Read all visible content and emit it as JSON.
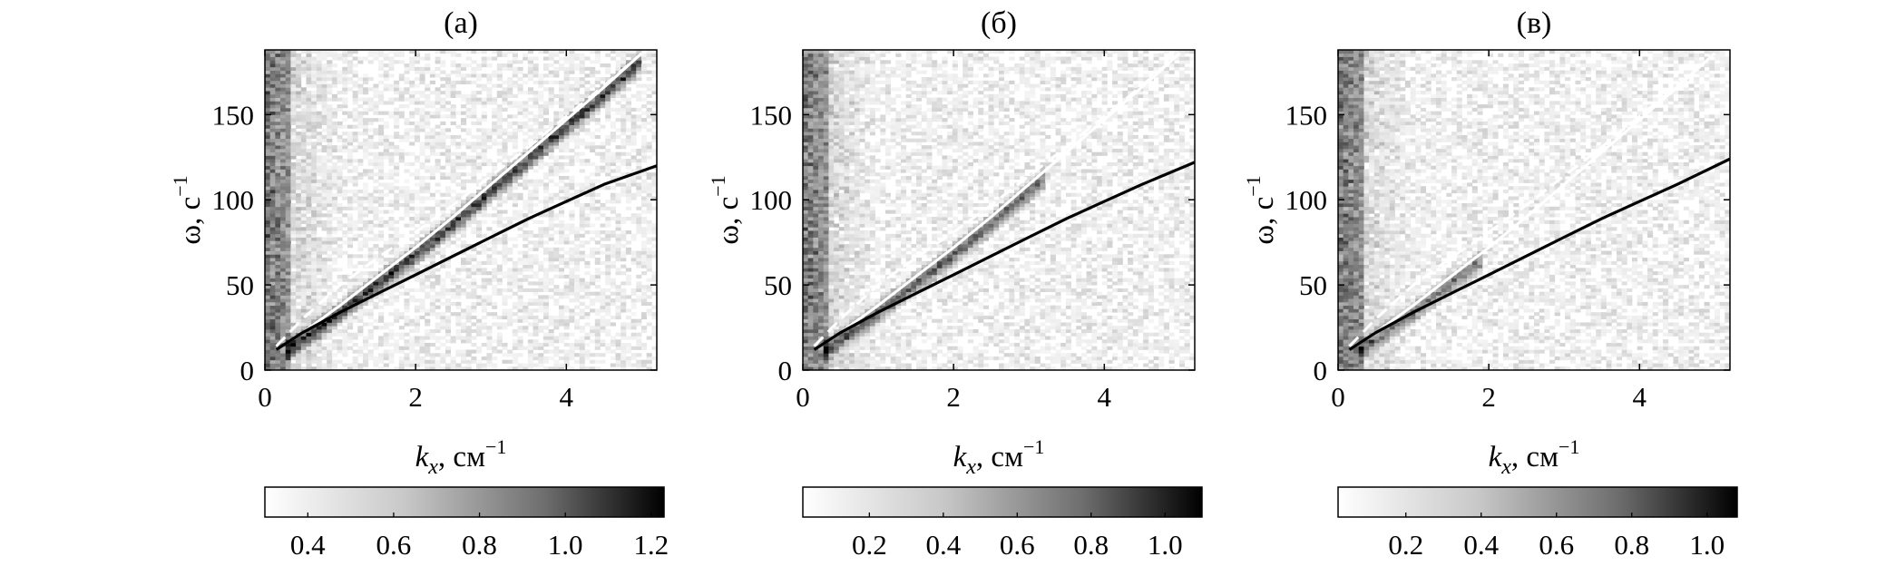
{
  "figure": {
    "panels": [
      {
        "label": "(а)"
      },
      {
        "label": "(б)"
      },
      {
        "label": "(в)"
      }
    ]
  },
  "chart_data": [
    {
      "type": "heatmap",
      "title": "(а)",
      "xlabel": {
        "var": "k",
        "sub": "x",
        "rest": ", см",
        "sup": "−1"
      },
      "ylabel": {
        "var": "ω",
        "rest": ", с",
        "sup": "−1"
      },
      "xlim": [
        0,
        5.2
      ],
      "ylim": [
        0,
        188
      ],
      "xticks": [
        "0",
        "2",
        "4"
      ],
      "yticks": [
        "0",
        "50",
        "100",
        "150"
      ],
      "colorbar": {
        "min": 0.3,
        "max": 1.23,
        "ticks": [
          "0.4",
          "0.6",
          "0.8",
          "1.0",
          "1.2"
        ],
        "tick_values": [
          0.4,
          0.6,
          0.8,
          1.0,
          1.2
        ]
      },
      "colormap": {
        "low": "#ffffff",
        "high": "#000000"
      },
      "ridge": {
        "k_start": 0.3,
        "k_end": 5.0,
        "intensity": 0.95
      },
      "curves": [
        {
          "color": "#ffffff",
          "style": "solid",
          "k": [
            0.15,
            0.5,
            1,
            1.5,
            2,
            2.5,
            3,
            3.5,
            4,
            4.5,
            5
          ],
          "omega": [
            12,
            22,
            38,
            55,
            72,
            90,
            109,
            128,
            147,
            166,
            186
          ]
        },
        {
          "color": "#ffffff",
          "style": "dashed",
          "k": [
            0.15,
            0.5,
            1,
            1.5,
            2,
            2.5,
            3,
            3.5,
            4,
            4.5,
            5
          ],
          "omega": [
            14,
            30,
            50,
            66,
            81,
            97,
            114,
            131,
            149,
            167,
            186
          ]
        },
        {
          "color": "#000000",
          "style": "solid",
          "k": [
            0.15,
            0.5,
            1,
            1.5,
            2,
            2.5,
            3,
            3.5,
            4,
            4.5,
            5.2
          ],
          "omega": [
            12,
            22,
            34,
            45,
            56,
            67,
            78,
            89,
            99,
            109,
            120
          ]
        }
      ]
    },
    {
      "type": "heatmap",
      "title": "(б)",
      "xlabel": {
        "var": "k",
        "sub": "x",
        "rest": ", см",
        "sup": "−1"
      },
      "ylabel": {
        "var": "ω",
        "rest": ", с",
        "sup": "−1"
      },
      "xlim": [
        0,
        5.2
      ],
      "ylim": [
        0,
        188
      ],
      "xticks": [
        "0",
        "2",
        "4"
      ],
      "yticks": [
        "0",
        "50",
        "100",
        "150"
      ],
      "colorbar": {
        "min": 0.02,
        "max": 1.1,
        "ticks": [
          "0.2",
          "0.4",
          "0.6",
          "0.8",
          "1.0"
        ],
        "tick_values": [
          0.2,
          0.4,
          0.6,
          0.8,
          1.0
        ]
      },
      "colormap": {
        "low": "#ffffff",
        "high": "#000000"
      },
      "ridge": {
        "k_start": 0.3,
        "k_end": 3.2,
        "intensity": 0.75
      },
      "curves": [
        {
          "color": "#ffffff",
          "style": "solid",
          "k": [
            0.15,
            0.5,
            1,
            1.5,
            2,
            2.5,
            3,
            3.5,
            4,
            4.5,
            5
          ],
          "omega": [
            12,
            22,
            38,
            55,
            72,
            90,
            109,
            128,
            147,
            166,
            186
          ]
        },
        {
          "color": "#ffffff",
          "style": "dashed",
          "k": [
            0.15,
            0.5,
            1,
            1.5,
            2,
            2.5,
            3,
            3.5,
            4,
            4.5,
            5
          ],
          "omega": [
            14,
            30,
            50,
            66,
            81,
            97,
            114,
            131,
            149,
            167,
            186
          ]
        },
        {
          "color": "#000000",
          "style": "solid",
          "k": [
            0.15,
            0.5,
            1,
            1.5,
            2,
            2.5,
            3,
            3.5,
            4,
            4.5,
            5.2
          ],
          "omega": [
            12,
            22,
            34,
            45,
            56,
            67,
            78,
            89,
            99,
            109,
            122
          ]
        }
      ]
    },
    {
      "type": "heatmap",
      "title": "(в)",
      "xlabel": {
        "var": "k",
        "sub": "x",
        "rest": ", см",
        "sup": "−1"
      },
      "ylabel": {
        "var": "ω",
        "rest": ", с",
        "sup": "−1"
      },
      "xlim": [
        0,
        5.2
      ],
      "ylim": [
        0,
        188
      ],
      "xticks": [
        "0",
        "2",
        "4"
      ],
      "yticks": [
        "0",
        "50",
        "100",
        "150"
      ],
      "colorbar": {
        "min": 0.02,
        "max": 1.08,
        "ticks": [
          "0.2",
          "0.4",
          "0.6",
          "0.8",
          "1.0"
        ],
        "tick_values": [
          0.2,
          0.4,
          0.6,
          0.8,
          1.0
        ]
      },
      "colormap": {
        "low": "#ffffff",
        "high": "#000000"
      },
      "ridge": {
        "k_start": 0.3,
        "k_end": 1.9,
        "intensity": 0.6
      },
      "curves": [
        {
          "color": "#ffffff",
          "style": "solid",
          "k": [
            0.15,
            0.5,
            1,
            1.5,
            2,
            2.5,
            3,
            3.5,
            4,
            4.5,
            5
          ],
          "omega": [
            12,
            22,
            38,
            55,
            72,
            90,
            109,
            128,
            147,
            166,
            186
          ]
        },
        {
          "color": "#ffffff",
          "style": "dashed",
          "k": [
            0.15,
            0.5,
            1,
            1.5,
            2,
            2.5,
            3,
            3.5,
            4,
            4.5,
            5
          ],
          "omega": [
            14,
            30,
            50,
            66,
            81,
            97,
            114,
            131,
            149,
            167,
            186
          ]
        },
        {
          "color": "#000000",
          "style": "solid",
          "k": [
            0.15,
            0.5,
            1,
            1.5,
            2,
            2.5,
            3,
            3.5,
            4,
            4.5,
            5.2
          ],
          "omega": [
            12,
            22,
            34,
            45,
            56,
            67,
            78,
            89,
            99,
            109,
            124
          ]
        }
      ]
    }
  ]
}
